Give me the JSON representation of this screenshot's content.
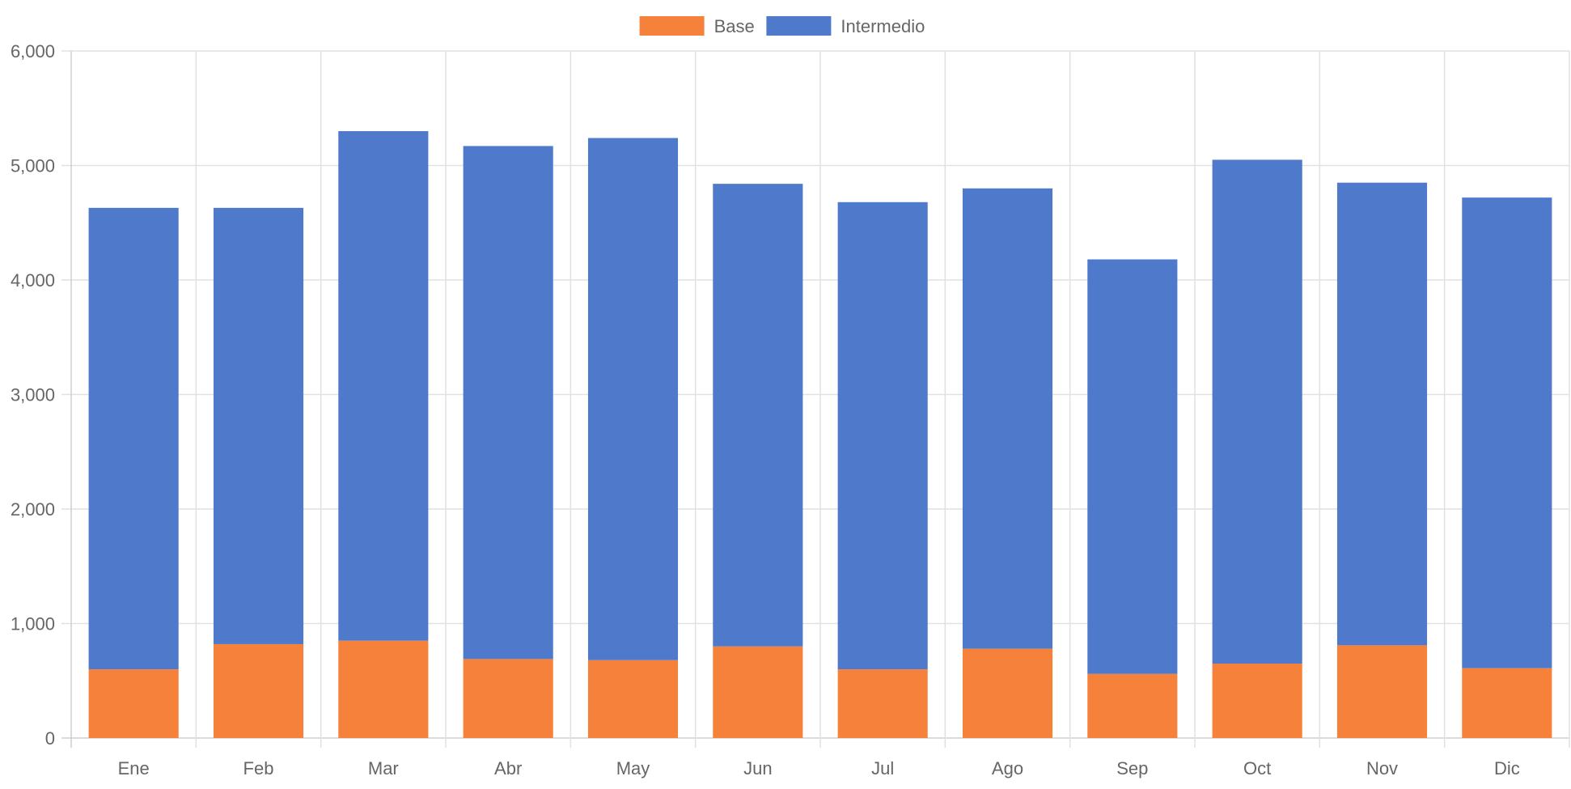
{
  "chart_data": {
    "type": "bar",
    "stacked": true,
    "categories": [
      "Ene",
      "Feb",
      "Mar",
      "Abr",
      "May",
      "Jun",
      "Jul",
      "Ago",
      "Sep",
      "Oct",
      "Nov",
      "Dic"
    ],
    "series": [
      {
        "name": "Base",
        "color": "#f5813a",
        "values": [
          600,
          820,
          850,
          690,
          680,
          800,
          600,
          780,
          560,
          650,
          810,
          610
        ]
      },
      {
        "name": "Intermedio",
        "color": "#4f7acb",
        "values": [
          4030,
          3810,
          4450,
          4480,
          4560,
          4040,
          4080,
          4020,
          3620,
          4400,
          4040,
          4110
        ]
      }
    ],
    "ylim": [
      0,
      6000
    ],
    "yticks": [
      0,
      1000,
      2000,
      3000,
      4000,
      5000,
      6000
    ],
    "ytick_labels": [
      "0",
      "1,000",
      "2,000",
      "3,000",
      "4,000",
      "5,000",
      "6,000"
    ],
    "grid": true,
    "legend_position": "top-center",
    "title": "",
    "xlabel": "",
    "ylabel": ""
  }
}
